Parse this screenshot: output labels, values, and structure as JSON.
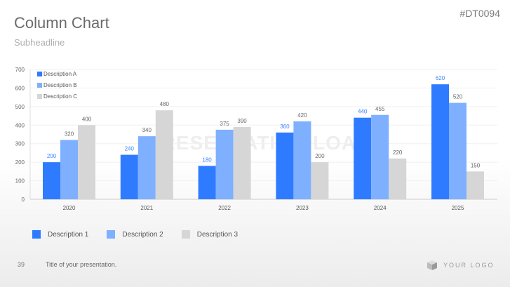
{
  "slide": {
    "title": "Column Chart",
    "subheadline": "Subheadline",
    "code": "#DT0094",
    "watermark": "PRESENTATION LOAD",
    "page_number": "39",
    "footer_title": "Title of your presentation.",
    "logo_text": "YOUR LOGO"
  },
  "bottom_legend": [
    {
      "label": "Description 1",
      "color": "#2e7bff"
    },
    {
      "label": "Description 2",
      "color": "#7fb0ff"
    },
    {
      "label": "Description 3",
      "color": "#d6d6d6"
    }
  ],
  "chart_data": {
    "type": "bar",
    "categories": [
      "2020",
      "2021",
      "2022",
      "2023",
      "2024",
      "2025"
    ],
    "series": [
      {
        "name": "Description A",
        "color": "#2e7bff",
        "label_color": "#3d86ff",
        "values": [
          200,
          240,
          180,
          360,
          440,
          620
        ]
      },
      {
        "name": "Description B",
        "color": "#7fb0ff",
        "label_color": "#666666",
        "values": [
          320,
          340,
          375,
          420,
          455,
          520
        ]
      },
      {
        "name": "Description C",
        "color": "#d6d6d6",
        "label_color": "#666666",
        "values": [
          400,
          480,
          390,
          200,
          220,
          150
        ]
      }
    ],
    "ylim": [
      0,
      700
    ],
    "yticks": [
      0,
      100,
      200,
      300,
      400,
      500,
      600,
      700
    ],
    "grid": true,
    "legend": "top-left"
  }
}
